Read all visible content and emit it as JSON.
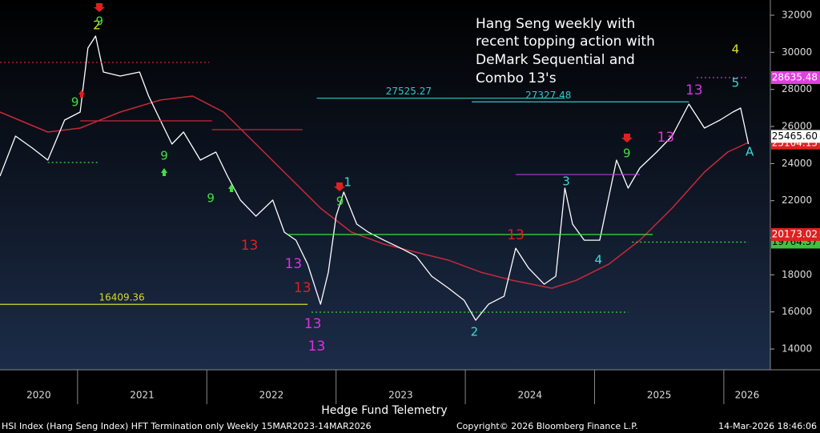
{
  "chart_data": {
    "type": "line",
    "title_lines": [
      "Hang Seng weekly with",
      "recent topping action with",
      "DeMark Sequential and",
      "Combo 13's"
    ],
    "xlim": [
      2020.4,
      2026.36
    ],
    "ylim": [
      12880,
      32820
    ],
    "yticks": [
      14000,
      16000,
      18000,
      20000,
      22000,
      24000,
      26000,
      28000,
      30000,
      32000
    ],
    "xticks": [
      2021,
      2022,
      2023,
      2024,
      2025,
      2026
    ],
    "year_labels": [
      "2020",
      "2021",
      "2022",
      "2023",
      "2024",
      "2025",
      "2026"
    ],
    "price": {
      "color": "#ffffff",
      "x": [
        2020.4,
        2020.52,
        2020.65,
        2020.77,
        2020.9,
        2021.02,
        2021.08,
        2021.14,
        2021.2,
        2021.33,
        2021.48,
        2021.55,
        2021.64,
        2021.73,
        2021.82,
        2021.95,
        2022.07,
        2022.16,
        2022.26,
        2022.38,
        2022.51,
        2022.6,
        2022.69,
        2022.78,
        2022.88,
        2022.94,
        2023.0,
        2023.06,
        2023.16,
        2023.25,
        2023.37,
        2023.5,
        2023.62,
        2023.74,
        2023.87,
        2023.99,
        2024.08,
        2024.18,
        2024.3,
        2024.39,
        2024.49,
        2024.61,
        2024.7,
        2024.77,
        2024.83,
        2024.92,
        2025.04,
        2025.17,
        2025.26,
        2025.35,
        2025.48,
        2025.6,
        2025.73,
        2025.85,
        2025.97,
        2026.07,
        2026.13,
        2026.19
      ],
      "values": [
        23323,
        25482,
        24835,
        24186,
        26345,
        26777,
        30230,
        30877,
        28935,
        28719,
        28935,
        27640,
        26345,
        25050,
        25697,
        24186,
        24618,
        23323,
        22028,
        21164,
        22028,
        20301,
        19869,
        18574,
        16416,
        18143,
        21164,
        22460,
        20733,
        20301,
        19869,
        19438,
        19006,
        17927,
        17279,
        16632,
        15553,
        16416,
        16848,
        19438,
        18359,
        17495,
        17927,
        22676,
        20733,
        19869,
        19869,
        24186,
        22676,
        23755,
        24618,
        25482,
        27208,
        25913,
        26345,
        26777,
        26993,
        25050
      ]
    },
    "moving_average": {
      "color": "#c8283a",
      "x": [
        2020.4,
        2020.77,
        2021.02,
        2021.33,
        2021.64,
        2021.89,
        2022.13,
        2022.38,
        2022.63,
        2022.88,
        2023.12,
        2023.37,
        2023.62,
        2023.87,
        2024.12,
        2024.36,
        2024.67,
        2024.86,
        2025.11,
        2025.35,
        2025.6,
        2025.85,
        2026.03,
        2026.19
      ],
      "values": [
        26777,
        25697,
        25913,
        26777,
        27424,
        27640,
        26777,
        25050,
        23323,
        21596,
        20301,
        19654,
        19222,
        18790,
        18143,
        17711,
        17279,
        17711,
        18574,
        19869,
        21596,
        23539,
        24618,
        25136
      ]
    },
    "levels": [
      {
        "value": 27525.27,
        "from": 2022.85,
        "to": 2024.77,
        "color": "#2ec8c8",
        "style": "solid",
        "labeled": true
      },
      {
        "value": 27327.48,
        "from": 2024.05,
        "to": 2025.73,
        "color": "#2ec8c8",
        "style": "solid",
        "labeled": true
      },
      {
        "value": 16409.36,
        "from": 2020.4,
        "to": 2022.78,
        "color": "#d8d830",
        "style": "solid",
        "labeled": true
      },
      {
        "value": 20173.02,
        "from": 2022.63,
        "to": 2025.45,
        "color": "#40e040",
        "style": "solid",
        "labeled": false
      },
      {
        "value": 19764.37,
        "from": 2025.29,
        "to": 2026.19,
        "color": "#40e040",
        "style": "dotted",
        "labeled": false
      },
      {
        "value": 15984,
        "from": 2022.81,
        "to": 2025.26,
        "color": "#40e040",
        "style": "dotted",
        "labeled": false
      },
      {
        "value": 28635.48,
        "from": 2025.79,
        "to": 2026.19,
        "color": "#e040e0",
        "style": "dotted",
        "labeled": false
      },
      {
        "value": 29453,
        "from": 2020.4,
        "to": 2022.02,
        "color": "#c8283a",
        "style": "dotted",
        "labeled": false
      },
      {
        "value": 26302,
        "from": 2021.02,
        "to": 2022.04,
        "color": "#c8283a",
        "style": "solid",
        "labeled": false
      },
      {
        "value": 25827,
        "from": 2022.04,
        "to": 2022.74,
        "color": "#c8283a",
        "style": "solid",
        "labeled": false
      },
      {
        "value": 23409,
        "from": 2024.39,
        "to": 2025.35,
        "color": "#b040d0",
        "style": "solid",
        "labeled": false
      },
      {
        "value": 24057,
        "from": 2020.77,
        "to": 2021.17,
        "color": "#40e040",
        "style": "dotted",
        "labeled": false
      }
    ],
    "annotations": [
      {
        "text": "2",
        "x": 2021.15,
        "y": 31439,
        "color": "#e0e020"
      },
      {
        "text": "9",
        "x": 2021.17,
        "y": 31655,
        "color": "#40e040"
      },
      {
        "text": "9",
        "x": 2020.98,
        "y": 27294,
        "color": "#40e040"
      },
      {
        "text": "9",
        "x": 2021.67,
        "y": 24402,
        "color": "#40e040"
      },
      {
        "text": "9",
        "x": 2022.03,
        "y": 22114,
        "color": "#40e040"
      },
      {
        "text": "13",
        "x": 2022.33,
        "y": 19567,
        "color": "#e02020"
      },
      {
        "text": "13",
        "x": 2022.67,
        "y": 18574,
        "color": "#e030e0"
      },
      {
        "text": "13",
        "x": 2022.74,
        "y": 17279,
        "color": "#e02020"
      },
      {
        "text": "13",
        "x": 2022.82,
        "y": 15337,
        "color": "#e030e0"
      },
      {
        "text": "13",
        "x": 2022.85,
        "y": 14128,
        "color": "#e030e0"
      },
      {
        "text": "9",
        "x": 2023.03,
        "y": 21941,
        "color": "#40e040"
      },
      {
        "text": "1",
        "x": 2023.09,
        "y": 22977,
        "color": "#40d8d8"
      },
      {
        "text": "2",
        "x": 2024.07,
        "y": 14905,
        "color": "#40d8d8"
      },
      {
        "text": "13",
        "x": 2024.39,
        "y": 20128,
        "color": "#e02020"
      },
      {
        "text": "3",
        "x": 2024.78,
        "y": 23021,
        "color": "#40d8d8"
      },
      {
        "text": "4",
        "x": 2025.03,
        "y": 18790,
        "color": "#40d8d8"
      },
      {
        "text": "9",
        "x": 2025.25,
        "y": 24532,
        "color": "#40e040"
      },
      {
        "text": "13",
        "x": 2025.55,
        "y": 25395,
        "color": "#e030e0"
      },
      {
        "text": "13",
        "x": 2025.77,
        "y": 27942,
        "color": "#e030e0"
      },
      {
        "text": "4",
        "x": 2026.09,
        "y": 30144,
        "color": "#e0e020"
      },
      {
        "text": "5",
        "x": 2026.09,
        "y": 28331,
        "color": "#40d8d8"
      },
      {
        "text": "A",
        "x": 2026.2,
        "y": 24618,
        "color": "#40d8d8"
      }
    ],
    "price_tags": [
      {
        "value": 28635.48,
        "bg": "#e040e0",
        "fg": "#ffffff"
      },
      {
        "value": 25104.15,
        "bg": "#e02020",
        "fg": "#ffffff"
      },
      {
        "value": {
          "value": 25465.6,
          "label": "25465.60"
        },
        "bg": "#ffffff",
        "fg": "#000000"
      },
      {
        "value": 19764.37,
        "bg": "#40c040",
        "fg": "#000000"
      },
      {
        "value": 20173.02,
        "bg": "#e02020",
        "fg": "#ffffff"
      }
    ],
    "subtitle": "Hedge Fund Telemetry",
    "footer_left": "HSI Index (Hang Seng Index) HFT Termination only Weekly 15MAR2023-14MAR2026",
    "footer_center": "Copyright© 2026 Bloomberg Finance L.P.",
    "footer_right": "14-Mar-2026 18:46:06"
  }
}
